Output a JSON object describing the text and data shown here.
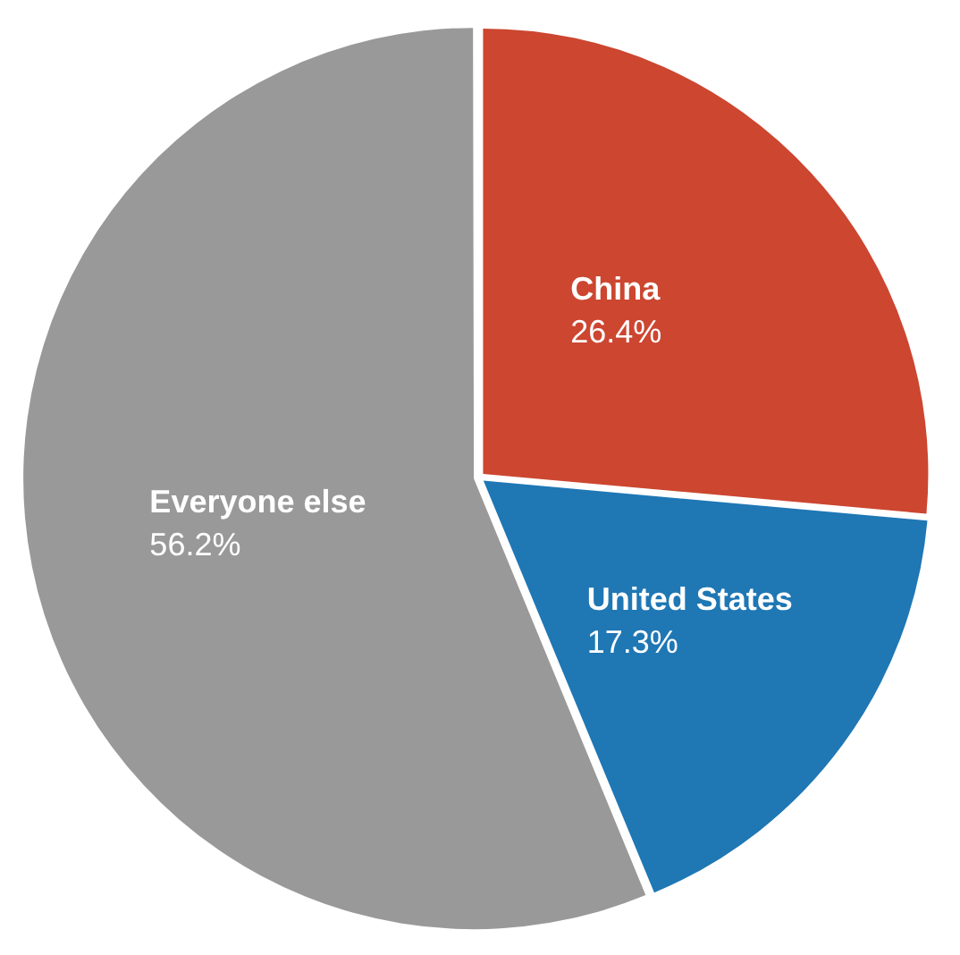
{
  "chart_data": {
    "type": "pie",
    "categories": [
      "China",
      "United States",
      "Everyone else"
    ],
    "values": [
      26.4,
      17.3,
      56.2
    ],
    "colors": [
      "#cc4630",
      "#1f77b4",
      "#999999"
    ],
    "value_labels": [
      "26.4%",
      "17.3%",
      "56.2%"
    ],
    "legend": false
  }
}
